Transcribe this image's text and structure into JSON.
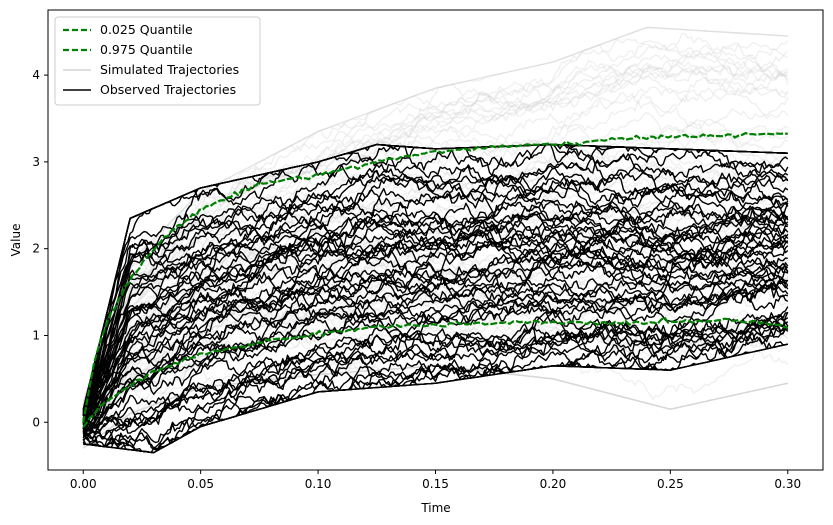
{
  "chart_data": {
    "type": "line",
    "title": "",
    "xlabel": "Time",
    "ylabel": "Value",
    "xlim": [
      -0.015,
      0.315
    ],
    "ylim": [
      -0.55,
      4.75
    ],
    "x_ticks": [
      0.0,
      0.05,
      0.1,
      0.15,
      0.2,
      0.25,
      0.3
    ],
    "x_tick_labels": [
      "0.00",
      "0.05",
      "0.10",
      "0.15",
      "0.20",
      "0.25",
      "0.30"
    ],
    "y_ticks": [
      0,
      1,
      2,
      3,
      4
    ],
    "y_tick_labels": [
      "0",
      "1",
      "2",
      "3",
      "4"
    ],
    "grid": false,
    "legend_position": "top-left",
    "legend": [
      {
        "label": "0.025 Quantile",
        "color": "#008000",
        "style": "dashed"
      },
      {
        "label": "0.975 Quantile",
        "color": "#008000",
        "style": "dashed"
      },
      {
        "label": "Simulated Trajectories",
        "color": "#d3d3d3",
        "style": "solid"
      },
      {
        "label": "Observed Trajectories",
        "color": "#000000",
        "style": "solid"
      }
    ],
    "series": [
      {
        "name": "0.025 Quantile",
        "color": "#008000",
        "x": [
          0.0,
          0.005,
          0.01,
          0.02,
          0.03,
          0.05,
          0.075,
          0.1,
          0.125,
          0.15,
          0.175,
          0.2,
          0.225,
          0.25,
          0.275,
          0.3
        ],
        "values": [
          -0.05,
          0.1,
          0.25,
          0.42,
          0.58,
          0.78,
          0.92,
          1.02,
          1.1,
          1.12,
          1.14,
          1.15,
          1.14,
          1.16,
          1.18,
          1.12
        ]
      },
      {
        "name": "0.975 Quantile",
        "color": "#008000",
        "x": [
          0.0,
          0.005,
          0.01,
          0.02,
          0.03,
          0.04,
          0.05,
          0.075,
          0.1,
          0.125,
          0.15,
          0.175,
          0.2,
          0.225,
          0.25,
          0.275,
          0.3
        ],
        "values": [
          0.0,
          0.75,
          1.15,
          1.65,
          2.0,
          2.25,
          2.45,
          2.75,
          2.85,
          3.0,
          3.12,
          3.17,
          3.2,
          3.25,
          3.3,
          3.3,
          3.33
        ]
      }
    ],
    "bands": [
      {
        "name": "Simulated Trajectories",
        "color": "#d3d3d3",
        "count": 60,
        "x_max": 0.3,
        "envelope_low": [
          [
            0.0,
            -0.25
          ],
          [
            0.02,
            0.15
          ],
          [
            0.05,
            0.45
          ],
          [
            0.1,
            0.6
          ],
          [
            0.15,
            0.7
          ],
          [
            0.2,
            0.55
          ],
          [
            0.25,
            0.2
          ],
          [
            0.3,
            0.5
          ]
        ],
        "envelope_high": [
          [
            0.0,
            0.2
          ],
          [
            0.02,
            1.8
          ],
          [
            0.05,
            2.6
          ],
          [
            0.1,
            3.3
          ],
          [
            0.15,
            3.8
          ],
          [
            0.2,
            4.1
          ],
          [
            0.24,
            4.5
          ],
          [
            0.3,
            4.4
          ]
        ]
      },
      {
        "name": "Observed Trajectories",
        "color": "#000000",
        "count": 60,
        "x_max": 0.3,
        "envelope_low": [
          [
            0.0,
            -0.2
          ],
          [
            0.03,
            -0.3
          ],
          [
            0.05,
            0.0
          ],
          [
            0.1,
            0.4
          ],
          [
            0.15,
            0.5
          ],
          [
            0.2,
            0.7
          ],
          [
            0.25,
            0.65
          ],
          [
            0.3,
            0.95
          ]
        ],
        "envelope_high": [
          [
            0.0,
            0.1
          ],
          [
            0.02,
            2.3
          ],
          [
            0.05,
            2.65
          ],
          [
            0.1,
            2.95
          ],
          [
            0.125,
            3.15
          ],
          [
            0.15,
            3.1
          ],
          [
            0.2,
            3.15
          ],
          [
            0.3,
            3.05
          ]
        ]
      }
    ]
  }
}
